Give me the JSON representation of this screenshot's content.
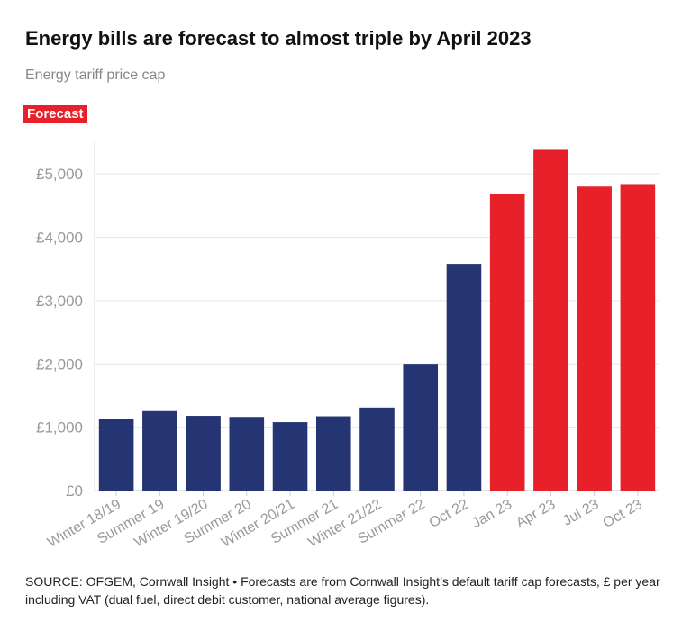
{
  "chart_data": {
    "type": "bar",
    "title": "Energy bills are forecast to almost triple by April 2023",
    "subtitle": "Energy tariff price cap",
    "legend": {
      "label": "Forecast",
      "color": "#e8202a",
      "placement": "top-left"
    },
    "categories": [
      "Winter 18/19",
      "Summer 19",
      "Winter 19/20",
      "Summer 20",
      "Winter 20/21",
      "Summer 21",
      "Winter 21/22",
      "Summer 22",
      "Oct 22",
      "Jan 23",
      "Apr 23",
      "Jul 23",
      "Oct 23"
    ],
    "values": [
      1137,
      1254,
      1179,
      1162,
      1079,
      1172,
      1310,
      2002,
      3580,
      4690,
      5380,
      4800,
      4840
    ],
    "forecast": [
      false,
      false,
      false,
      false,
      false,
      false,
      false,
      false,
      false,
      true,
      true,
      true,
      true
    ],
    "colors": {
      "actual": "#253472",
      "forecast": "#e8202a"
    },
    "ylim": [
      0,
      5500
    ],
    "yticks": [
      0,
      1000,
      2000,
      3000,
      4000,
      5000
    ],
    "ytick_labels": [
      "£0",
      "£1,000",
      "£2,000",
      "£3,000",
      "£4,000",
      "£5,000"
    ],
    "xlabel": "",
    "ylabel": "",
    "grid": true
  },
  "source_note": "SOURCE: OFGEM, Cornwall Insight • Forecasts are from Cornwall Insight’s default tariff cap forecasts, £ per year including VAT (dual fuel, direct debit customer, national average figures)."
}
